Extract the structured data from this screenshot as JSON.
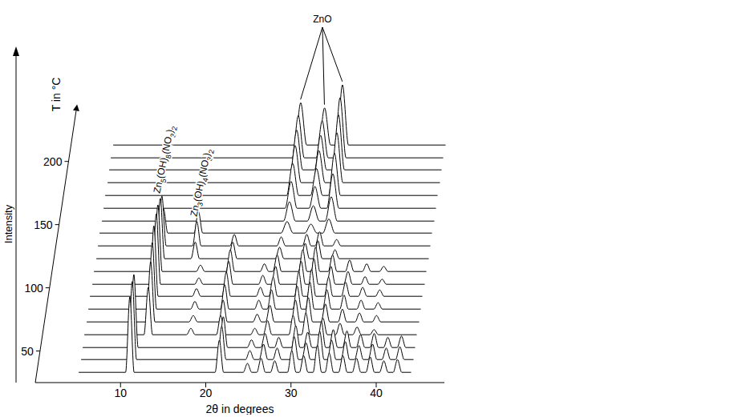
{
  "chart_data": {
    "type": "waterfall",
    "xlabel": "2θ in degrees",
    "ylabel": "Intensity",
    "zlabel": "T in °C",
    "color": "#000000",
    "xlim": [
      0,
      48
    ],
    "xticks": [
      10,
      20,
      30,
      40
    ],
    "ylim": [
      0,
      100
    ],
    "yticks": [],
    "zlim": [
      25,
      215
    ],
    "zticks": [
      50,
      100,
      150,
      200
    ],
    "series": [
      {
        "T": 30,
        "x": [
          5,
          10.5,
          11,
          11.5,
          21,
          21.5,
          22,
          24.3,
          24.8,
          25.3,
          25.9,
          26.4,
          26.9,
          27.5,
          28,
          28.5,
          29.5,
          30,
          30.5,
          30.9,
          31.4,
          31.9,
          32.5,
          33,
          33.5,
          33.9,
          34.4,
          34.9,
          35.5,
          36,
          36.5,
          37.1,
          37.6,
          38.1,
          38.7,
          39.2,
          39.7,
          40.3,
          40.8,
          41.3,
          41.9,
          42.4,
          42.9,
          44
        ],
        "values": [
          3,
          3,
          62,
          3,
          3,
          28,
          3,
          3,
          10,
          3,
          3,
          14,
          3,
          3,
          12,
          3,
          3,
          20,
          3,
          3,
          16,
          3,
          3,
          24,
          3,
          3,
          18,
          3,
          3,
          16,
          3,
          3,
          14,
          3,
          3,
          15,
          3,
          3,
          12,
          3,
          3,
          13,
          3,
          3
        ]
      },
      {
        "T": 40,
        "x": [
          5,
          10.5,
          11,
          11.5,
          21,
          21.5,
          22,
          24.3,
          24.8,
          25.3,
          25.9,
          26.4,
          26.9,
          27.5,
          28,
          28.5,
          29.5,
          30,
          30.5,
          30.9,
          31.4,
          31.9,
          32.5,
          33,
          33.5,
          33.9,
          34.4,
          34.9,
          35.5,
          36,
          36.5,
          37.1,
          37.6,
          38.1,
          38.7,
          39.2,
          39.7,
          40.3,
          40.8,
          41.3,
          41.9,
          42.4,
          42.9,
          44
        ],
        "values": [
          3,
          3,
          64,
          3,
          3,
          29,
          3,
          3,
          10,
          3,
          3,
          15,
          3,
          3,
          12,
          3,
          3,
          21,
          3,
          3,
          16,
          3,
          3,
          25,
          3,
          3,
          18,
          3,
          3,
          17,
          3,
          3,
          14,
          3,
          3,
          15,
          3,
          3,
          12,
          3,
          3,
          13,
          3,
          3
        ]
      },
      {
        "T": 50,
        "x": [
          5,
          10.5,
          11,
          11.5,
          21,
          21.5,
          22,
          24.3,
          24.8,
          25.3,
          25.9,
          26.4,
          26.9,
          27.5,
          28,
          28.5,
          29.5,
          30,
          30.5,
          30.9,
          31.4,
          31.9,
          32.5,
          33,
          33.5,
          33.9,
          34.4,
          34.9,
          35.5,
          36,
          36.5,
          37.1,
          37.6,
          38.1,
          38.7,
          39.2,
          39.7,
          40.3,
          40.8,
          41.3,
          41.9,
          42.4,
          42.9,
          44
        ],
        "values": [
          3,
          3,
          60,
          3,
          3,
          27,
          3,
          3,
          9,
          3,
          3,
          14,
          3,
          3,
          11,
          3,
          3,
          20,
          3,
          3,
          15,
          3,
          3,
          23,
          3,
          3,
          17,
          3,
          3,
          16,
          3,
          3,
          13,
          3,
          3,
          14,
          3,
          3,
          11,
          3,
          3,
          12,
          3,
          3
        ]
      },
      {
        "T": 60,
        "x": [
          5,
          12,
          12.5,
          13,
          17,
          17.5,
          18,
          20.5,
          21,
          21.5,
          24.5,
          25,
          25.5,
          26,
          26.5,
          27,
          29,
          29.5,
          30,
          30.5,
          31,
          31.5,
          32.5,
          33,
          33.5,
          34.5,
          35,
          35.5,
          36.5,
          37,
          37.5,
          38.5,
          39,
          39.5,
          44
        ],
        "values": [
          3,
          3,
          40,
          3,
          3,
          8,
          3,
          3,
          18,
          3,
          3,
          8,
          3,
          3,
          14,
          3,
          3,
          18,
          3,
          3,
          20,
          3,
          3,
          16,
          3,
          3,
          12,
          3,
          3,
          9,
          3,
          3,
          7,
          3,
          3
        ]
      },
      {
        "T": 70,
        "x": [
          5,
          12,
          12.5,
          13,
          17,
          17.5,
          18,
          20.5,
          21,
          21.5,
          24.5,
          25,
          25.5,
          26,
          26.5,
          27,
          29,
          29.5,
          30,
          30.5,
          31,
          31.5,
          32.5,
          33,
          33.5,
          34.5,
          35,
          35.5,
          36.5,
          37,
          37.5,
          38.5,
          39,
          39.5,
          44
        ],
        "values": [
          3,
          3,
          50,
          3,
          3,
          8,
          3,
          3,
          20,
          3,
          3,
          9,
          3,
          3,
          16,
          3,
          3,
          20,
          3,
          3,
          22,
          3,
          3,
          17,
          3,
          3,
          13,
          3,
          3,
          10,
          3,
          3,
          8,
          3,
          3
        ]
      },
      {
        "T": 80,
        "x": [
          5,
          12,
          12.5,
          13,
          17,
          17.5,
          18,
          20.5,
          21,
          21.5,
          24.5,
          25,
          25.5,
          26,
          26.5,
          27,
          29,
          29.5,
          30,
          30.5,
          31,
          31.5,
          32.5,
          33,
          33.5,
          34.5,
          35,
          35.5,
          36.5,
          37,
          37.5,
          38.5,
          39,
          39.5,
          44
        ],
        "values": [
          3,
          3,
          55,
          3,
          3,
          9,
          3,
          3,
          22,
          3,
          3,
          10,
          3,
          3,
          18,
          3,
          3,
          21,
          3,
          3,
          24,
          3,
          3,
          18,
          3,
          3,
          14,
          3,
          3,
          10,
          3,
          3,
          8,
          3,
          3
        ]
      },
      {
        "T": 90,
        "x": [
          5,
          12,
          12.5,
          13,
          17,
          17.5,
          18,
          20.5,
          21,
          21.5,
          24.5,
          25,
          25.5,
          26,
          26.5,
          27,
          29,
          29.5,
          30,
          30.5,
          31,
          31.5,
          32.5,
          33,
          33.5,
          34.5,
          35,
          35.5,
          36.5,
          37,
          37.5,
          38.5,
          39,
          39.5,
          44
        ],
        "values": [
          3,
          3,
          58,
          3,
          3,
          9,
          3,
          3,
          22,
          3,
          3,
          10,
          3,
          3,
          18,
          3,
          3,
          22,
          3,
          3,
          24,
          3,
          3,
          18,
          3,
          3,
          14,
          3,
          3,
          10,
          3,
          3,
          8,
          3,
          3
        ]
      },
      {
        "T": 100,
        "x": [
          5,
          12,
          12.5,
          13,
          17,
          17.5,
          18,
          20.5,
          21,
          21.5,
          24.5,
          25,
          25.5,
          26,
          26.5,
          27,
          29,
          29.5,
          30,
          30.5,
          31,
          31.5,
          32.5,
          33,
          33.5,
          34.5,
          35,
          35.5,
          36.5,
          37,
          37.5,
          38.5,
          39,
          39.5,
          44
        ],
        "values": [
          3,
          3,
          58,
          3,
          3,
          8,
          3,
          3,
          21,
          3,
          3,
          10,
          3,
          3,
          17,
          3,
          3,
          21,
          3,
          3,
          23,
          3,
          3,
          17,
          3,
          3,
          13,
          3,
          3,
          9,
          3,
          3,
          7,
          3,
          3
        ]
      },
      {
        "T": 110,
        "x": [
          5,
          12,
          12.5,
          13,
          17,
          17.5,
          18,
          20.5,
          21,
          21.5,
          24.5,
          25,
          25.5,
          26,
          26.5,
          27,
          29,
          29.5,
          30,
          30.5,
          31,
          31.5,
          32.5,
          33,
          33.5,
          34.5,
          35,
          35.5,
          36.5,
          37,
          37.5,
          38.5,
          39,
          39.5,
          44
        ],
        "values": [
          3,
          3,
          55,
          3,
          3,
          8,
          3,
          3,
          20,
          3,
          3,
          9,
          3,
          3,
          16,
          3,
          3,
          20,
          3,
          3,
          22,
          3,
          3,
          16,
          3,
          3,
          12,
          3,
          3,
          9,
          3,
          3,
          7,
          3,
          3
        ]
      },
      {
        "T": 120,
        "x": [
          5,
          12,
          12.5,
          13,
          16.1,
          16.6,
          17.1,
          20.5,
          21,
          21.5,
          26,
          26.5,
          27,
          29,
          29.5,
          30,
          30.5,
          31,
          31.5,
          32.5,
          33,
          33.5,
          44
        ],
        "values": [
          3,
          3,
          50,
          3,
          3,
          16,
          3,
          3,
          16,
          3,
          3,
          12,
          3,
          3,
          15,
          3,
          3,
          17,
          3,
          3,
          10,
          3,
          3
        ]
      },
      {
        "T": 130,
        "x": [
          5,
          12,
          12.5,
          13,
          16.1,
          16.6,
          17.1,
          20.5,
          21,
          21.5,
          26,
          26.5,
          27,
          29,
          29.5,
          30,
          30.5,
          31,
          31.5,
          32.5,
          33,
          33.5,
          44
        ],
        "values": [
          3,
          3,
          42,
          3,
          3,
          22,
          3,
          3,
          12,
          3,
          3,
          10,
          3,
          3,
          12,
          3,
          3,
          14,
          3,
          3,
          8,
          3,
          3
        ]
      },
      {
        "T": 140,
        "x": [
          5,
          12,
          12.5,
          13,
          16.1,
          16.6,
          17.1,
          26.3,
          27,
          27.7,
          29.1,
          29.8,
          30.5,
          31.2,
          31.9,
          32.6,
          44
        ],
        "values": [
          3,
          3,
          22,
          3,
          3,
          20,
          3,
          3,
          12,
          3,
          3,
          10,
          3,
          3,
          14,
          3,
          3
        ]
      },
      {
        "T": 150,
        "x": [
          5,
          26.3,
          27,
          27.7,
          29.1,
          29.8,
          30.5,
          31.2,
          31.9,
          32.6,
          44
        ],
        "values": [
          3,
          3,
          18,
          3,
          3,
          15,
          3,
          3,
          22,
          3,
          3
        ]
      },
      {
        "T": 160,
        "x": [
          5,
          26.3,
          27,
          27.7,
          29.1,
          29.8,
          30.5,
          31.2,
          31.9,
          32.6,
          44
        ],
        "values": [
          3,
          3,
          24,
          3,
          3,
          20,
          3,
          3,
          30,
          3,
          3
        ]
      },
      {
        "T": 170,
        "x": [
          5,
          26.3,
          27,
          27.7,
          29.1,
          29.8,
          30.5,
          31.2,
          31.9,
          32.6,
          44
        ],
        "values": [
          3,
          3,
          28,
          3,
          3,
          24,
          3,
          3,
          36,
          3,
          3
        ]
      },
      {
        "T": 180,
        "x": [
          5,
          26.3,
          27,
          27.7,
          29.1,
          29.8,
          30.5,
          31.2,
          31.9,
          32.6,
          44
        ],
        "values": [
          3,
          3,
          32,
          3,
          3,
          28,
          3,
          3,
          42,
          3,
          3
        ]
      },
      {
        "T": 190,
        "x": [
          5,
          26.3,
          27,
          27.7,
          29.1,
          29.8,
          30.5,
          31.2,
          31.9,
          32.6,
          44
        ],
        "values": [
          3,
          3,
          34,
          3,
          3,
          30,
          3,
          3,
          46,
          3,
          3
        ]
      },
      {
        "T": 200,
        "x": [
          5,
          26.3,
          27,
          27.7,
          29.1,
          29.8,
          30.5,
          31.2,
          31.9,
          32.6,
          44
        ],
        "values": [
          3,
          3,
          36,
          3,
          3,
          32,
          3,
          3,
          50,
          3,
          3
        ]
      },
      {
        "T": 210,
        "x": [
          5,
          26.3,
          27,
          27.7,
          29.1,
          29.8,
          30.5,
          31.2,
          31.9,
          32.6,
          44
        ],
        "values": [
          3,
          3,
          36,
          3,
          3,
          32,
          3,
          3,
          50,
          3,
          3
        ]
      }
    ],
    "annotations": [
      {
        "text": "Zn5(OH)8(NO3)2",
        "x": 12.5,
        "T": 120
      },
      {
        "text": "Zn3(OH)4(NO3)2",
        "x": 16.6,
        "T": 130
      },
      {
        "text": "ZnO",
        "x": [
          27,
          29.8,
          31.9
        ],
        "T": 210
      }
    ]
  }
}
